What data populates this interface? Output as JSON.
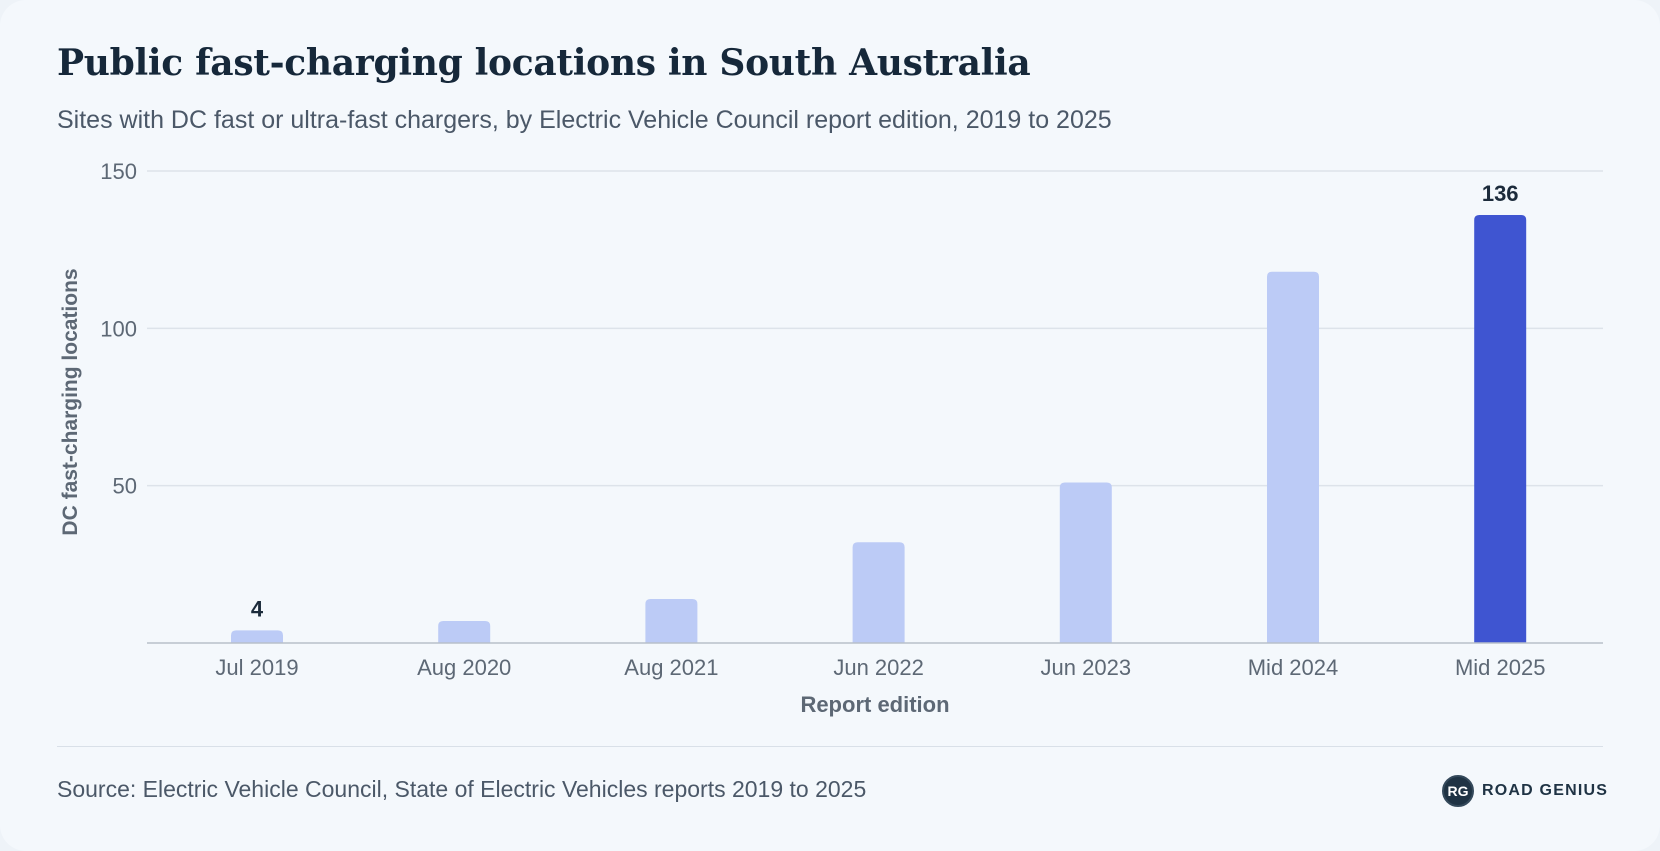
{
  "chart_data": {
    "type": "bar",
    "title": "Public fast-charging locations in South Australia",
    "subtitle": "Sites with DC fast or ultra-fast chargers, by Electric Vehicle Council report edition, 2019 to 2025",
    "xlabel": "Report edition",
    "ylabel": "DC fast-charging locations",
    "categories": [
      "Jul 2019",
      "Aug 2020",
      "Aug 2021",
      "Jun 2022",
      "Jun 2023",
      "Mid 2024",
      "Mid 2025"
    ],
    "values": [
      4,
      7,
      14,
      32,
      51,
      118,
      136
    ],
    "data_labels": [
      "4",
      "",
      "",
      "",
      "",
      "",
      "136"
    ],
    "highlight_index": 6,
    "ylim": [
      0,
      150
    ],
    "yticks": [
      50,
      100,
      150
    ],
    "grid": true,
    "colors": {
      "bar": "#bccbf6",
      "highlight": "#3f55d1",
      "grid": "#dde3ea",
      "axis": "#b8c0ca",
      "tick_text": "#5d6875",
      "axis_label": "#5d6875",
      "data_label": "#1c2b3b"
    }
  },
  "footer": {
    "source": "Source: Electric Vehicle Council, State of Electric Vehicles reports 2019 to 2025",
    "brand_badge": "RG",
    "brand_name": "ROAD GENIUS"
  }
}
